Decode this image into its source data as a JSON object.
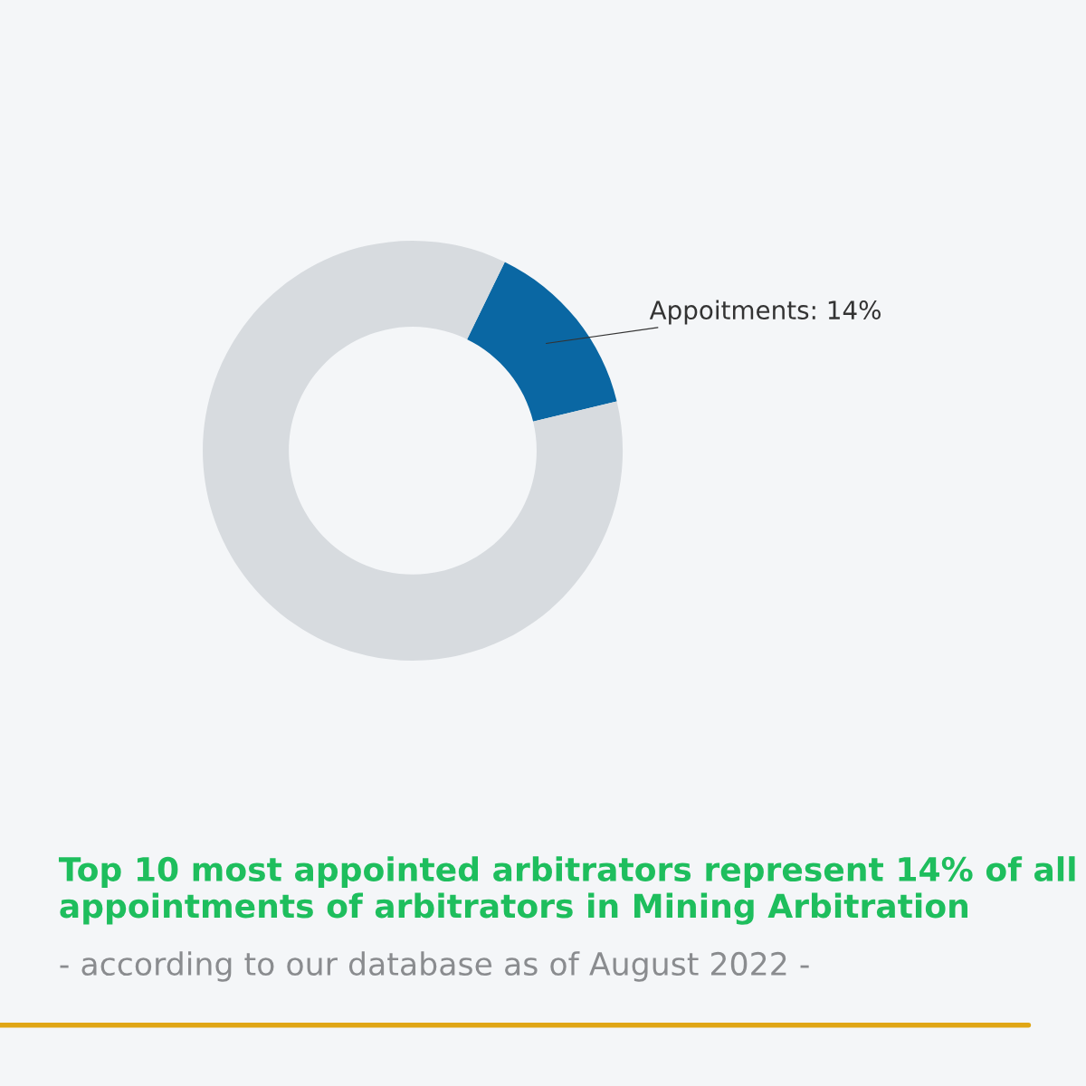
{
  "chart_data": {
    "type": "donut",
    "title": "Top 10 most appointed arbitrators represent 14% of all appointments of arbitrators in Mining Arbitration",
    "subtitle": "- according to our database as of August 2022 -",
    "categories": [
      "Appoitments",
      null
    ],
    "values": [
      14,
      86
    ],
    "colors": [
      "#0a67a3",
      "#d7dbdf"
    ],
    "value_labels": [
      "14%",
      null
    ],
    "legend": false
  }
}
